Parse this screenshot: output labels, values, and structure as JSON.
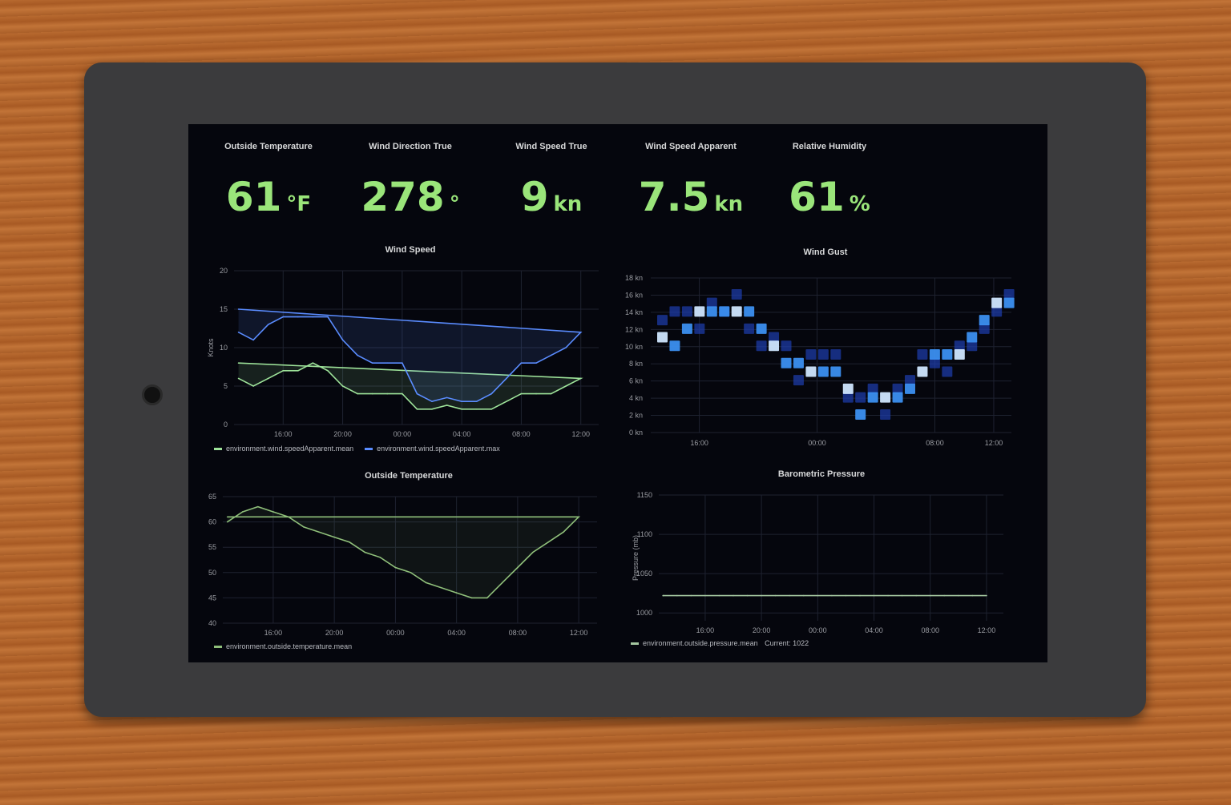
{
  "stats": [
    {
      "title": "Outside Temperature",
      "value": "61",
      "unit": "°F"
    },
    {
      "title": "Wind Direction True",
      "value": "278",
      "unit": "°"
    },
    {
      "title": "Wind Speed True",
      "value": "9",
      "unit": "kn"
    },
    {
      "title": "Wind Speed Apparent",
      "value": "7.5",
      "unit": "kn"
    },
    {
      "title": "Relative Humidity",
      "value": "61",
      "unit": "%"
    }
  ],
  "colors": {
    "stat_value": "#9ae57a",
    "series_mean": "#9ee39a",
    "series_max": "#5a8cff",
    "heat_low": "#0a1a6e",
    "heat_high": "#e6f2ff",
    "temp_line": "#8fbf7a",
    "pressure_line": "#a5c7a0"
  },
  "chart_data": [
    {
      "id": "wind_speed",
      "type": "line",
      "title": "Wind Speed",
      "ylabel": "Knots",
      "ylim": [
        0,
        20
      ],
      "yticks": [
        "0",
        "5",
        "10",
        "15",
        "20"
      ],
      "x": [
        "13:00",
        "14:00",
        "15:00",
        "16:00",
        "17:00",
        "18:00",
        "19:00",
        "20:00",
        "21:00",
        "22:00",
        "23:00",
        "00:00",
        "01:00",
        "02:00",
        "03:00",
        "04:00",
        "05:00",
        "06:00",
        "07:00",
        "08:00",
        "09:00",
        "10:00",
        "11:00",
        "12:00",
        "13:00"
      ],
      "xticks": [
        "16:00",
        "20:00",
        "00:00",
        "04:00",
        "08:00",
        "12:00"
      ],
      "series": [
        {
          "name": "environment.wind.speedApparent.mean",
          "values": [
            6,
            5,
            6,
            7,
            7,
            8,
            7,
            5,
            4,
            4,
            4,
            4,
            2,
            2,
            2.5,
            2,
            2,
            2,
            3,
            4,
            4,
            4,
            5,
            6,
            8
          ]
        },
        {
          "name": "environment.wind.speedApparent.max",
          "values": [
            12,
            11,
            13,
            14,
            14,
            14,
            14,
            11,
            9,
            8,
            8,
            8,
            4,
            3,
            3.5,
            3,
            3,
            4,
            6,
            8,
            8,
            9,
            10,
            12,
            15
          ]
        }
      ],
      "grid": true,
      "legend": "bottom"
    },
    {
      "id": "wind_gust",
      "type": "heatmap",
      "title": "Wind Gust",
      "ylim": [
        0,
        18
      ],
      "yticks": [
        "0 kn",
        "2 kn",
        "4 kn",
        "6 kn",
        "8 kn",
        "10 kn",
        "12 kn",
        "14 kn",
        "16 kn",
        "18 kn"
      ],
      "xticks": [
        "16:00",
        "00:00",
        "08:00",
        "12:00"
      ],
      "peak_kn": [
        11,
        10,
        12,
        14,
        14,
        14,
        14,
        14,
        12,
        10,
        8,
        8,
        7,
        7,
        7,
        5,
        2,
        4,
        4,
        4,
        5,
        7,
        9,
        9,
        9,
        11,
        13,
        15,
        15
      ],
      "secondary_kn": [
        13,
        14,
        14,
        12,
        15,
        14,
        16,
        12,
        10,
        11,
        10,
        6,
        9,
        9,
        9,
        4,
        4,
        5,
        2,
        5,
        6,
        9,
        8,
        7,
        10,
        10,
        12,
        14,
        16
      ],
      "grid": true
    },
    {
      "id": "outside_temperature",
      "type": "area",
      "title": "Outside Temperature",
      "ylim": [
        40,
        65
      ],
      "yticks": [
        "40",
        "45",
        "50",
        "55",
        "60",
        "65"
      ],
      "x": [
        "13:00",
        "14:00",
        "15:00",
        "16:00",
        "17:00",
        "18:00",
        "19:00",
        "20:00",
        "21:00",
        "22:00",
        "23:00",
        "00:00",
        "01:00",
        "02:00",
        "03:00",
        "04:00",
        "05:00",
        "06:00",
        "07:00",
        "08:00",
        "09:00",
        "10:00",
        "11:00",
        "12:00",
        "13:00"
      ],
      "xticks": [
        "16:00",
        "20:00",
        "00:00",
        "04:00",
        "08:00",
        "12:00"
      ],
      "series": [
        {
          "name": "environment.outside.temperature.mean",
          "values": [
            60,
            62,
            63,
            62,
            61,
            59,
            58,
            57,
            56,
            54,
            53,
            51,
            50,
            48,
            47,
            46,
            45,
            45,
            48,
            51,
            54,
            56,
            58,
            61,
            61
          ]
        }
      ],
      "grid": true,
      "legend": "bottom"
    },
    {
      "id": "barometric_pressure",
      "type": "area",
      "title": "Barometric Pressure",
      "ylabel": "Pressure (mb)",
      "ylim": [
        990,
        1150
      ],
      "yticks": [
        "1000",
        "1050",
        "1100",
        "1150"
      ],
      "x": [
        "13:00",
        "14:00",
        "15:00",
        "16:00",
        "17:00",
        "18:00",
        "19:00",
        "20:00",
        "21:00",
        "22:00",
        "23:00",
        "00:00",
        "01:00",
        "02:00",
        "03:00",
        "04:00",
        "05:00",
        "06:00",
        "07:00",
        "08:00",
        "09:00",
        "10:00",
        "11:00",
        "12:00",
        "13:00"
      ],
      "xticks": [
        "16:00",
        "20:00",
        "00:00",
        "04:00",
        "08:00",
        "12:00"
      ],
      "series": [
        {
          "name": "environment.outside.pressure.mean",
          "values": [
            1022,
            1022,
            1022,
            1022,
            1022,
            1022,
            1022,
            1022,
            1022,
            1022,
            1022,
            1022,
            1022,
            1022,
            1022,
            1022,
            1022,
            1022,
            1022,
            1022,
            1022,
            1022,
            1022,
            1022,
            1022
          ]
        }
      ],
      "legend_current": "Current: 1022",
      "grid": true,
      "legend": "bottom"
    }
  ]
}
